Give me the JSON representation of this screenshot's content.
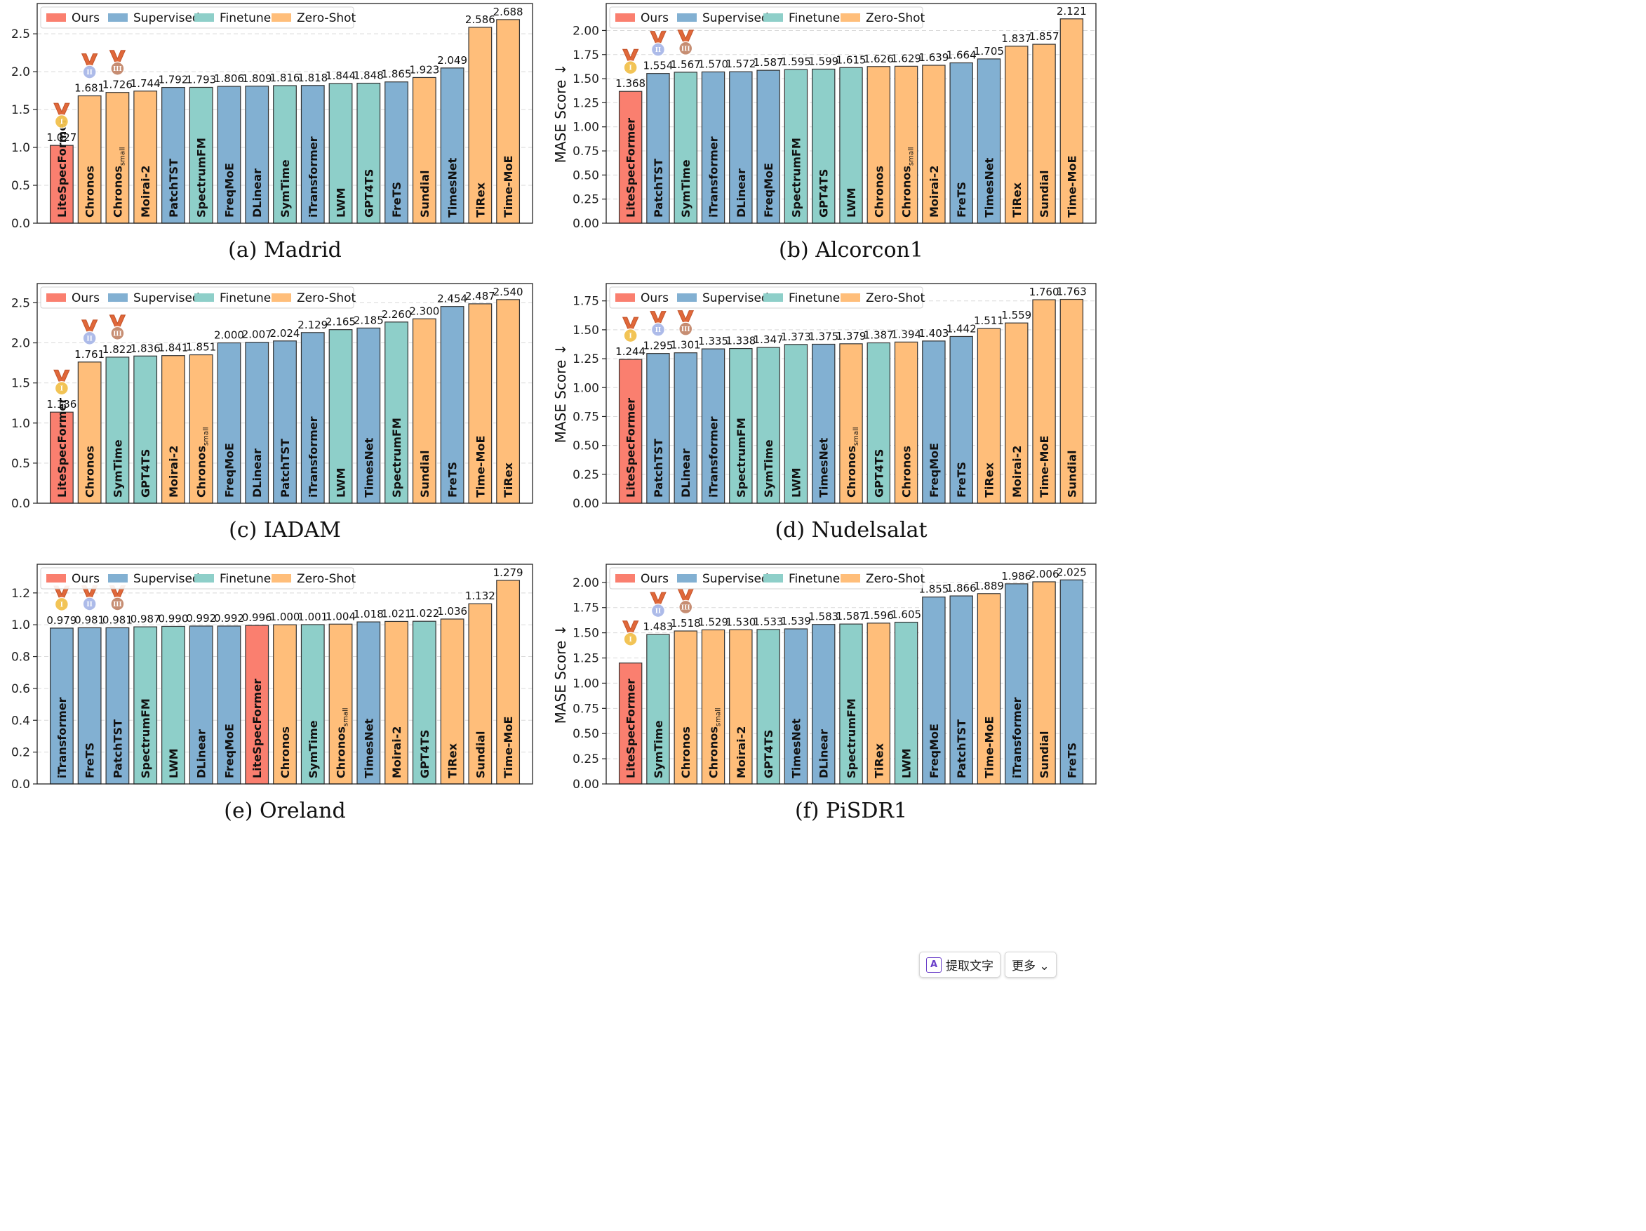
{
  "legend": [
    {
      "key": "ours",
      "label": "Ours",
      "color": "#fa7f6f"
    },
    {
      "key": "supervised",
      "label": "Supervised",
      "color": "#82b0d2"
    },
    {
      "key": "finetune",
      "label": "Finetune",
      "color": "#8ecfc9"
    },
    {
      "key": "zeroshot",
      "label": "Zero-Shot",
      "color": "#ffbe7a"
    }
  ],
  "medal_colors": {
    "gold": "#f2c14e",
    "silver": "#a9b8e8",
    "bronze": "#c4876b",
    "ribbon": "#e0683a"
  },
  "medal_numerals": [
    "I",
    "II",
    "III"
  ],
  "overlay": {
    "extract_text": "提取文字",
    "more": "更多 ⌄",
    "icon_glyph": "A"
  },
  "chart_data": [
    {
      "type": "bar",
      "caption": "(a) Madrid",
      "ylabel": "MASE Score ↓",
      "ylim": [
        0,
        2.9
      ],
      "yticks": [
        "0.0",
        "0.5",
        "1.0",
        "1.5",
        "2.0",
        "2.5"
      ],
      "grid": true,
      "legend_position": "top-left",
      "categories": [
        "LiteSpecFormer",
        "Chronos",
        "Chronos_small",
        "Moirai-2",
        "PatchTST",
        "SpectrumFM",
        "FreqMoE",
        "DLinear",
        "SymTime",
        "iTransformer",
        "LWM",
        "GPT4TS",
        "FreTS",
        "Sundial",
        "TimesNet",
        "TiRex",
        "Time-MoE"
      ],
      "groups": [
        "ours",
        "zeroshot",
        "zeroshot",
        "zeroshot",
        "supervised",
        "finetune",
        "supervised",
        "supervised",
        "finetune",
        "supervised",
        "finetune",
        "finetune",
        "supervised",
        "zeroshot",
        "supervised",
        "zeroshot",
        "zeroshot"
      ],
      "values": [
        1.027,
        1.681,
        1.726,
        1.744,
        1.792,
        1.793,
        1.806,
        1.809,
        1.816,
        1.818,
        1.844,
        1.848,
        1.865,
        1.923,
        2.049,
        2.586,
        2.688
      ],
      "value_labels": [
        "1.027",
        "1.681",
        "1.726",
        "1.744",
        "1.792",
        "1.793",
        "1.806",
        "1.809",
        "1.816",
        "1.818",
        "1.844",
        "1.848",
        "1.865",
        "1.923",
        "2.049",
        "2.586",
        "2.688"
      ]
    },
    {
      "type": "bar",
      "caption": "(b) Alcorcon1",
      "ylabel": "MASE Score ↓",
      "ylim": [
        0,
        2.28
      ],
      "yticks": [
        "0.00",
        "0.25",
        "0.50",
        "0.75",
        "1.00",
        "1.25",
        "1.50",
        "1.75",
        "2.00"
      ],
      "grid": true,
      "legend_position": "top-left",
      "categories": [
        "LiteSpecFormer",
        "PatchTST",
        "SymTime",
        "iTransformer",
        "DLinear",
        "FreqMoE",
        "SpectrumFM",
        "GPT4TS",
        "LWM",
        "Chronos",
        "Chronos_small",
        "Moirai-2",
        "FreTS",
        "TimesNet",
        "TiRex",
        "Sundial",
        "Time-MoE"
      ],
      "groups": [
        "ours",
        "supervised",
        "finetune",
        "supervised",
        "supervised",
        "supervised",
        "finetune",
        "finetune",
        "finetune",
        "zeroshot",
        "zeroshot",
        "zeroshot",
        "supervised",
        "supervised",
        "zeroshot",
        "zeroshot",
        "zeroshot"
      ],
      "values": [
        1.368,
        1.554,
        1.567,
        1.57,
        1.572,
        1.587,
        1.595,
        1.599,
        1.615,
        1.626,
        1.629,
        1.639,
        1.664,
        1.705,
        1.837,
        1.857,
        2.121
      ],
      "value_labels": [
        "1.368",
        "1.554",
        "1.567",
        "1.570",
        "1.572",
        "1.587",
        "1.595",
        "1.599",
        "1.615",
        "1.626",
        "1.629",
        "1.639",
        "1.664",
        "1.705",
        "1.837",
        "1.857",
        "2.121"
      ]
    },
    {
      "type": "bar",
      "caption": "(c) IADAM",
      "ylabel": "MASE Score ↓",
      "ylim": [
        0,
        2.74
      ],
      "yticks": [
        "0.0",
        "0.5",
        "1.0",
        "1.5",
        "2.0",
        "2.5"
      ],
      "grid": true,
      "legend_position": "top-left",
      "categories": [
        "LiteSpecFormer",
        "Chronos",
        "SymTime",
        "GPT4TS",
        "Moirai-2",
        "Chronos_small",
        "FreqMoE",
        "DLinear",
        "PatchTST",
        "iTransformer",
        "LWM",
        "TimesNet",
        "SpectrumFM",
        "Sundial",
        "FreTS",
        "Time-MoE",
        "TiRex"
      ],
      "groups": [
        "ours",
        "zeroshot",
        "finetune",
        "finetune",
        "zeroshot",
        "zeroshot",
        "supervised",
        "supervised",
        "supervised",
        "supervised",
        "finetune",
        "supervised",
        "finetune",
        "zeroshot",
        "supervised",
        "zeroshot",
        "zeroshot"
      ],
      "values": [
        1.136,
        1.761,
        1.822,
        1.836,
        1.841,
        1.851,
        2.0,
        2.007,
        2.024,
        2.129,
        2.165,
        2.185,
        2.26,
        2.3,
        2.454,
        2.487,
        2.54
      ],
      "value_labels": [
        "1.136",
        "1.761",
        "1.822",
        "1.836",
        "1.841",
        "1.851",
        "2.000",
        "2.007",
        "2.024",
        "2.129",
        "2.165",
        "2.185",
        "2.260",
        "2.300",
        "2.454",
        "2.487",
        "2.540"
      ]
    },
    {
      "type": "bar",
      "caption": "(d) Nudelsalat",
      "ylabel": "MASE Score ↓",
      "ylim": [
        0,
        1.9
      ],
      "yticks": [
        "0.00",
        "0.25",
        "0.50",
        "0.75",
        "1.00",
        "1.25",
        "1.50",
        "1.75"
      ],
      "grid": true,
      "legend_position": "top-left",
      "categories": [
        "LiteSpecFormer",
        "PatchTST",
        "DLinear",
        "iTransformer",
        "SpectrumFM",
        "SymTime",
        "LWM",
        "TimesNet",
        "Chronos_small",
        "GPT4TS",
        "Chronos",
        "FreqMoE",
        "FreTS",
        "TiRex",
        "Moirai-2",
        "Time-MoE",
        "Sundial"
      ],
      "groups": [
        "ours",
        "supervised",
        "supervised",
        "supervised",
        "finetune",
        "finetune",
        "finetune",
        "supervised",
        "zeroshot",
        "finetune",
        "zeroshot",
        "supervised",
        "supervised",
        "zeroshot",
        "zeroshot",
        "zeroshot",
        "zeroshot"
      ],
      "values": [
        1.244,
        1.295,
        1.301,
        1.335,
        1.338,
        1.347,
        1.373,
        1.375,
        1.379,
        1.387,
        1.394,
        1.403,
        1.442,
        1.511,
        1.559,
        1.76,
        1.763
      ],
      "value_labels": [
        "1.244",
        "1.295",
        "1.301",
        "1.335",
        "1.338",
        "1.347",
        "1.373",
        "1.375",
        "1.379",
        "1.387",
        "1.394",
        "1.403",
        "1.442",
        "1.511",
        "1.559",
        "1.760",
        "1.763"
      ]
    },
    {
      "type": "bar",
      "caption": "(e) Oreland",
      "ylabel": "MASE Score ↓",
      "ylim": [
        0,
        1.38
      ],
      "yticks": [
        "0.0",
        "0.2",
        "0.4",
        "0.6",
        "0.8",
        "1.0",
        "1.2"
      ],
      "grid": true,
      "legend_position": "top-left",
      "categories": [
        "iTransformer",
        "FreTS",
        "PatchTST",
        "SpectrumFM",
        "LWM",
        "DLinear",
        "FreqMoE",
        "LiteSpecFormer",
        "Chronos",
        "SymTime",
        "Chronos_small",
        "TimesNet",
        "Moirai-2",
        "GPT4TS",
        "TiRex",
        "Sundial",
        "Time-MoE"
      ],
      "groups": [
        "supervised",
        "supervised",
        "supervised",
        "finetune",
        "finetune",
        "supervised",
        "supervised",
        "ours",
        "zeroshot",
        "finetune",
        "zeroshot",
        "supervised",
        "zeroshot",
        "finetune",
        "zeroshot",
        "zeroshot",
        "zeroshot"
      ],
      "values": [
        0.979,
        0.981,
        0.981,
        0.987,
        0.99,
        0.992,
        0.992,
        0.996,
        1.0,
        1.001,
        1.004,
        1.018,
        1.021,
        1.022,
        1.036,
        1.132,
        1.279
      ],
      "value_labels": [
        "0.979",
        "0.981",
        "0.981",
        "0.987",
        "0.990",
        "0.992",
        "0.992",
        "0.996",
        "1.000",
        "1.001",
        "1.004",
        "1.018",
        "1.021",
        "1.022",
        "1.036",
        "1.132",
        "1.279"
      ]
    },
    {
      "type": "bar",
      "caption": "(f) PiSDR1",
      "ylabel": "MASE Score ↓",
      "ylim": [
        0,
        2.18
      ],
      "yticks": [
        "0.00",
        "0.25",
        "0.50",
        "0.75",
        "1.00",
        "1.25",
        "1.50",
        "1.75",
        "2.00"
      ],
      "grid": true,
      "legend_position": "top-left",
      "categories": [
        "LiteSpecFormer",
        "SymTime",
        "Chronos",
        "Chronos_small",
        "Moirai-2",
        "GPT4TS",
        "TimesNet",
        "DLinear",
        "SpectrumFM",
        "TiRex",
        "LWM",
        "FreqMoE",
        "PatchTST",
        "Time-MoE",
        "iTransformer",
        "Sundial",
        "FreTS"
      ],
      "groups": [
        "ours",
        "finetune",
        "zeroshot",
        "zeroshot",
        "zeroshot",
        "finetune",
        "supervised",
        "supervised",
        "finetune",
        "zeroshot",
        "finetune",
        "supervised",
        "supervised",
        "zeroshot",
        "supervised",
        "zeroshot",
        "supervised"
      ],
      "values": [
        1.2,
        1.483,
        1.518,
        1.529,
        1.53,
        1.533,
        1.539,
        1.583,
        1.587,
        1.596,
        1.605,
        1.855,
        1.866,
        1.889,
        1.986,
        2.006,
        2.025
      ],
      "value_labels": [
        "",
        "1.483",
        "1.518",
        "1.529",
        "1.530",
        "1.533",
        "1.539",
        "1.583",
        "1.587",
        "1.596",
        "1.605",
        "1.855",
        "1.866",
        "1.889",
        "1.986",
        "2.006",
        "2.025"
      ]
    }
  ]
}
